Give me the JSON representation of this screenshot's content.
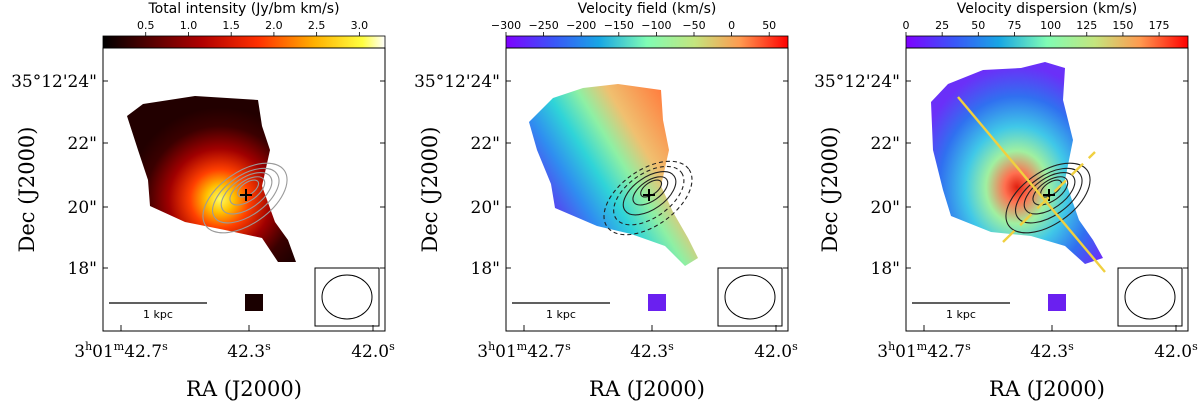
{
  "chart_data": [
    {
      "type": "heatmap",
      "colorbar": {
        "title": "Total intensity (Jy/bm km/s)",
        "ticks": [
          "0.5",
          "1.0",
          "1.5",
          "2.0",
          "2.5",
          "3.0"
        ],
        "range": [
          0.0,
          3.3
        ],
        "tick_values": [
          0.5,
          1.0,
          1.5,
          2.0,
          2.5,
          3.0
        ]
      },
      "colormap": "hot",
      "xlabel": "RA (J2000)",
      "ylabel": "Dec (J2000)",
      "x_ticks": [
        "3h01m42.7s",
        "42.3s",
        "42.0s"
      ],
      "y_ticks": [
        "35°12'24\"",
        "22\"",
        "20\"",
        "18\""
      ],
      "scale_bar": "1 kpc",
      "contours": "grey",
      "marker": "+",
      "beam": "ellipse"
    },
    {
      "type": "heatmap",
      "colorbar": {
        "title": "Velocity field (km/s)",
        "ticks": [
          "−300",
          "−250",
          "−200",
          "−150",
          "−100",
          "−50",
          "0",
          "50"
        ],
        "range": [
          -300,
          75
        ],
        "tick_values": [
          -300,
          -250,
          -200,
          -150,
          -100,
          -50,
          0,
          50
        ]
      },
      "colormap": "rainbow",
      "xlabel": "RA (J2000)",
      "ylabel": "Dec (J2000)",
      "x_ticks": [
        "3h01m42.7s",
        "42.3s",
        "42.0s"
      ],
      "y_ticks": [
        "35°12'24\"",
        "22\"",
        "20\"",
        "18\""
      ],
      "scale_bar": "1 kpc",
      "contours": "black (solid and dashed)",
      "marker": "+",
      "beam": "ellipse"
    },
    {
      "type": "heatmap",
      "colorbar": {
        "title": "Velocity dispersion (km/s)",
        "ticks": [
          "0",
          "25",
          "50",
          "75",
          "100",
          "125",
          "150",
          "175"
        ],
        "range": [
          0,
          195
        ],
        "tick_values": [
          0,
          25,
          50,
          75,
          100,
          125,
          150,
          175
        ]
      },
      "colormap": "rainbow",
      "xlabel": "RA (J2000)",
      "ylabel": "Dec (J2000)",
      "x_ticks": [
        "3h01m42.7s",
        "42.3s",
        "42.0s"
      ],
      "y_ticks": [
        "35°12'24\"",
        "22\"",
        "20\"",
        "18\""
      ],
      "scale_bar": "1 kpc",
      "contours": "black",
      "marker": "+",
      "beam": "ellipse",
      "overlay_lines": [
        "solid yellow",
        "dashed yellow"
      ]
    }
  ]
}
